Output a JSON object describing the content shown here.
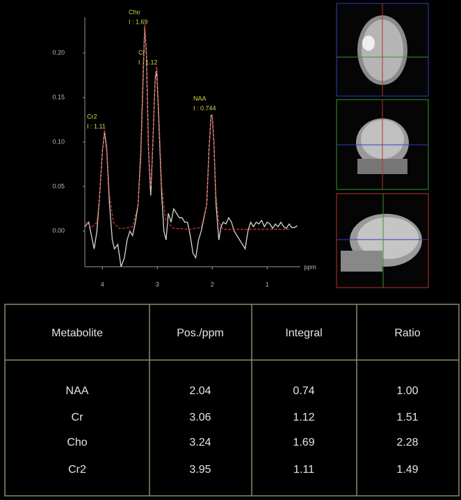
{
  "chart_data": {
    "type": "line",
    "x_label": "ppm",
    "xlim": [
      4.32,
      0.42
    ],
    "xticks": [
      4,
      3,
      2,
      1
    ],
    "ylim": [
      -0.04,
      0.24
    ],
    "yticks": [
      {
        "value": 0,
        "label": "0.00"
      },
      {
        "value": 0.05,
        "label": "0.05"
      },
      {
        "value": 0.1,
        "label": "0.10"
      },
      {
        "value": 0.15,
        "label": "0.15"
      },
      {
        "value": 0.2,
        "label": "0.20"
      }
    ],
    "annotations": [
      {
        "name": "Cho",
        "text": "I : 1.69"
      },
      {
        "name": "Cr",
        "text": "I : 1.12"
      },
      {
        "name": "NAA",
        "text": "I : 0.744"
      },
      {
        "name": "Cr2",
        "text": "I : 1.11"
      }
    ],
    "series": [
      {
        "color": "#d8d8d8",
        "dashed": false,
        "x": [
          4.32,
          4.25,
          4.2,
          4.15,
          4.1,
          4.05,
          4.0,
          3.96,
          3.92,
          3.87,
          3.82,
          3.78,
          3.72,
          3.66,
          3.6,
          3.55,
          3.5,
          3.45,
          3.4,
          3.35,
          3.3,
          3.26,
          3.23,
          3.2,
          3.16,
          3.12,
          3.08,
          3.04,
          3.01,
          2.97,
          2.92,
          2.88,
          2.84,
          2.8,
          2.75,
          2.7,
          2.65,
          2.6,
          2.55,
          2.5,
          2.45,
          2.4,
          2.35,
          2.3,
          2.25,
          2.2,
          2.15,
          2.1,
          2.06,
          2.02,
          2.0,
          1.97,
          1.93,
          1.88,
          1.84,
          1.8,
          1.75,
          1.7,
          1.65,
          1.6,
          1.55,
          1.5,
          1.45,
          1.4,
          1.35,
          1.3,
          1.25,
          1.2,
          1.15,
          1.1,
          1.05,
          1.0,
          0.95,
          0.9,
          0.85,
          0.8,
          0.75,
          0.7,
          0.65,
          0.6,
          0.55,
          0.5,
          0.45
        ],
        "values": [
          0.005,
          0.01,
          -0.005,
          -0.02,
          0.0,
          0.04,
          0.09,
          0.112,
          0.09,
          0.03,
          -0.01,
          -0.02,
          -0.015,
          -0.04,
          -0.03,
          -0.01,
          0.0,
          -0.005,
          0.01,
          0.03,
          0.09,
          0.17,
          0.23,
          0.2,
          0.09,
          0.04,
          0.1,
          0.17,
          0.18,
          0.12,
          0.04,
          0.0,
          -0.01,
          0.02,
          0.01,
          0.025,
          0.02,
          0.015,
          0.015,
          0.01,
          0.01,
          -0.005,
          -0.025,
          -0.03,
          -0.01,
          0.0,
          0.015,
          0.03,
          0.09,
          0.13,
          0.13,
          0.1,
          0.03,
          -0.01,
          0.005,
          0.01,
          0.008,
          0.015,
          0.01,
          0.0,
          -0.005,
          -0.01,
          -0.015,
          -0.02,
          0.0,
          0.01,
          0.005,
          0.01,
          0.008,
          0.012,
          0.005,
          0.01,
          0.008,
          0.003,
          0.008,
          0.005,
          0.01,
          0.005,
          0.003,
          0.008,
          0.004,
          0.004,
          0.006
        ]
      },
      {
        "color": "#c0392b",
        "dashed": true,
        "x": [
          4.3,
          4.2,
          4.1,
          4.05,
          4.0,
          3.96,
          3.92,
          3.87,
          3.8,
          3.7,
          3.6,
          3.45,
          3.35,
          3.3,
          3.26,
          3.23,
          3.2,
          3.16,
          3.12,
          3.08,
          3.04,
          3.01,
          2.97,
          2.92,
          2.85,
          2.7,
          2.4,
          2.2,
          2.1,
          2.06,
          2.02,
          2.0,
          1.97,
          1.93,
          1.88,
          1.8,
          1.5,
          1.0,
          0.6
        ],
        "values": [
          0.01,
          0.004,
          0.01,
          0.04,
          0.09,
          0.114,
          0.095,
          0.04,
          0.01,
          0.003,
          0.003,
          0.005,
          0.03,
          0.08,
          0.16,
          0.232,
          0.2,
          0.09,
          0.05,
          0.1,
          0.175,
          0.185,
          0.13,
          0.05,
          0.012,
          0.003,
          0.002,
          0.004,
          0.03,
          0.09,
          0.128,
          0.13,
          0.1,
          0.04,
          0.01,
          0.002,
          0.002,
          0.002,
          0.002
        ]
      }
    ]
  },
  "table": {
    "header": [
      "Metabolite",
      "Pos./ppm",
      "Integral",
      "Ratio"
    ],
    "rows": [
      [
        "NAA",
        "2.04",
        "0.74",
        "1.00"
      ],
      [
        "Cr",
        "3.06",
        "1.12",
        "1.51"
      ],
      [
        "Cho",
        "3.24",
        "1.69",
        "2.28"
      ],
      [
        "Cr2",
        "3.95",
        "1.11",
        "1.49"
      ]
    ]
  }
}
